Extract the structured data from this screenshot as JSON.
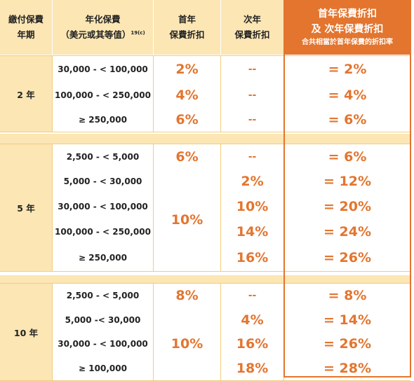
{
  "header": {
    "col1": [
      "繳付保費",
      "年期"
    ],
    "col2": [
      "年化保費",
      "（美元或其等值）"
    ],
    "col2_footnote": "19(c)",
    "col3": [
      "首年",
      "保費折扣"
    ],
    "col4": [
      "次年",
      "保費折扣"
    ],
    "col5": [
      "首年保費折扣",
      "及 次年保費折扣"
    ],
    "col5_note": "合共相當於首年保費的折扣率"
  },
  "groups": [
    {
      "term": "2 年",
      "rows": [
        {
          "range": "30,000 - < 100,000",
          "first": "2%",
          "second": "--",
          "total": "= 2%"
        },
        {
          "range": "100,000 - < 250,000",
          "first": "4%",
          "second": "--",
          "total": "= 4%"
        },
        {
          "range": "≥ 250,000",
          "first": "6%",
          "second": "--",
          "total": "= 6%"
        }
      ]
    },
    {
      "term": "5 年",
      "merged_first": "10%",
      "rows": [
        {
          "range": "2,500 - < 5,000",
          "first": "6%",
          "second": "--",
          "total": "= 6%"
        },
        {
          "range": "5,000 - < 30,000",
          "second": "2%",
          "total": "= 12%"
        },
        {
          "range": "30,000 - < 100,000",
          "second": "10%",
          "total": "= 20%"
        },
        {
          "range": "100,000 - < 250,000",
          "second": "14%",
          "total": "= 24%"
        },
        {
          "range": "≥ 250,000",
          "second": "16%",
          "total": "= 26%"
        }
      ]
    },
    {
      "term": "10 年",
      "merged_first": "10%",
      "rows": [
        {
          "range": "2,500 - < 5,000",
          "first": "8%",
          "second": "--",
          "total": "= 8%"
        },
        {
          "range": "5,000 -< 30,000",
          "second": "4%",
          "total": "= 14%"
        },
        {
          "range": "30,000 - < 100,000",
          "second": "16%",
          "total": "= 26%"
        },
        {
          "range": "≥ 100,000",
          "second": "18%",
          "total": "= 28%"
        }
      ]
    }
  ],
  "colors": {
    "header_bg": "#fbe6b4",
    "accent": "#e3752f",
    "grid": "#f2cc7e"
  }
}
